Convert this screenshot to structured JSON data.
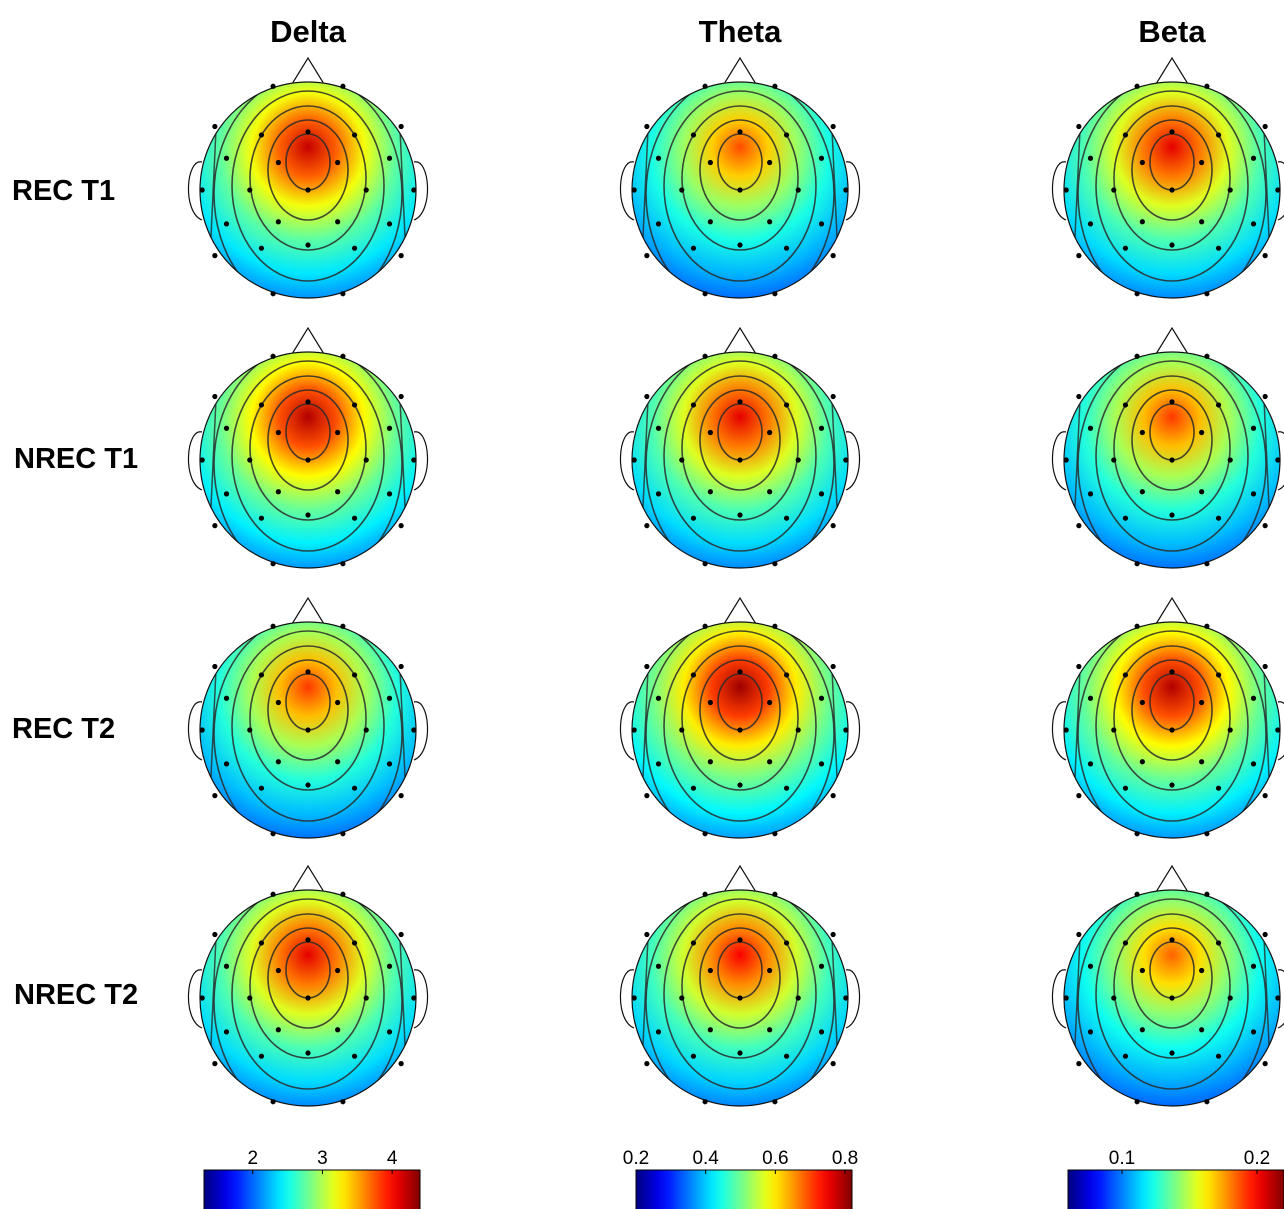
{
  "chart_data": {
    "type": "heatmap",
    "description_kind": "EEG scalp topographic maps",
    "columns": [
      {
        "title": "Delta",
        "colorbar": {
          "ticks": [
            "2",
            "3",
            "4"
          ],
          "range": [
            1.3,
            4.4
          ]
        }
      },
      {
        "title": "Theta",
        "colorbar": {
          "ticks": [
            "0.2",
            "0.4",
            "0.6",
            "0.8"
          ],
          "range": [
            0.2,
            0.82
          ]
        }
      },
      {
        "title": "Beta",
        "colorbar": {
          "ticks": [
            "0.1",
            "0.2"
          ],
          "range": [
            0.06,
            0.22
          ]
        }
      }
    ],
    "rows": [
      {
        "label": "REC T1"
      },
      {
        "label": "NREC T1"
      },
      {
        "label": "REC T2"
      },
      {
        "label": "NREC T2"
      }
    ],
    "colormap": "jet",
    "peak_location": "frontal-central midline",
    "maps": [
      [
        {
          "band": "Delta",
          "condition": "REC T1",
          "peak_level": 0.93
        },
        {
          "band": "Theta",
          "condition": "REC T1",
          "peak_level": 0.8
        },
        {
          "band": "Beta",
          "condition": "REC T1",
          "peak_level": 0.9
        }
      ],
      [
        {
          "band": "Delta",
          "condition": "NREC T1",
          "peak_level": 0.95
        },
        {
          "band": "Theta",
          "condition": "NREC T1",
          "peak_level": 0.9
        },
        {
          "band": "Beta",
          "condition": "NREC T1",
          "peak_level": 0.82
        }
      ],
      [
        {
          "band": "Delta",
          "condition": "REC T2",
          "peak_level": 0.82
        },
        {
          "band": "Theta",
          "condition": "REC T2",
          "peak_level": 0.97
        },
        {
          "band": "Beta",
          "condition": "REC T2",
          "peak_level": 0.95
        }
      ],
      [
        {
          "band": "Delta",
          "condition": "NREC T2",
          "peak_level": 0.9
        },
        {
          "band": "Theta",
          "condition": "NREC T2",
          "peak_level": 0.88
        },
        {
          "band": "Beta",
          "condition": "NREC T2",
          "peak_level": 0.78
        }
      ]
    ]
  }
}
